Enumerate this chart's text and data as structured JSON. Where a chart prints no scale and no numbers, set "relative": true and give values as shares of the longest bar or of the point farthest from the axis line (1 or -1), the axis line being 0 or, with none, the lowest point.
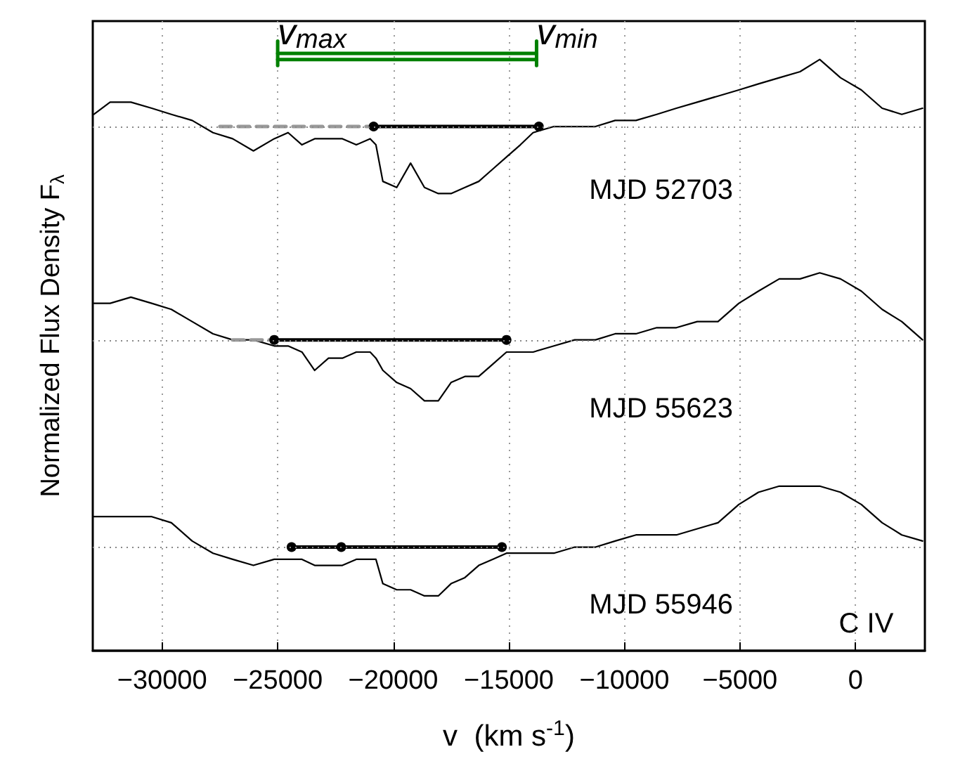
{
  "chart_data": {
    "type": "line",
    "relative": true,
    "xlabel": "v  (km s$^{-1}$)",
    "ylabel": "Normalized Flux Density F$_{λ}$",
    "xlim": [
      -33000,
      3000
    ],
    "xticks": [
      -30000,
      -25000,
      -20000,
      -15000,
      -10000,
      -5000,
      0
    ],
    "grid": "x",
    "marker": "none",
    "line_style": "solid",
    "x": [
      -32950,
      -32250,
      -31350,
      -30450,
      -29600,
      -28700,
      -27800,
      -26950,
      -26050,
      -25150,
      -24550,
      -23950,
      -23400,
      -22800,
      -22200,
      -21600,
      -21000,
      -20750,
      -20450,
      -19850,
      -19250,
      -18650,
      -18050,
      -17500,
      -16900,
      -16300,
      -15700,
      -15100,
      -14500,
      -13950,
      -13050,
      -12150,
      -11250,
      -10400,
      -9500,
      -8600,
      -7750,
      -6850,
      -5950,
      -5050,
      -4200,
      -3300,
      -2400,
      -1550,
      -650,
      250,
      1150,
      2000,
      2900
    ],
    "series": [
      {
        "color": "#000000",
        "values": [
          0.88,
          0.9,
          0.9,
          0.89,
          0.88,
          0.87,
          0.85,
          0.84,
          0.82,
          0.84,
          0.85,
          0.83,
          0.84,
          0.84,
          0.84,
          0.83,
          0.84,
          0.83,
          0.77,
          0.76,
          0.8,
          0.76,
          0.75,
          0.75,
          0.76,
          0.77,
          0.79,
          0.81,
          0.83,
          0.85,
          0.86,
          0.86,
          0.86,
          0.87,
          0.87,
          0.88,
          0.89,
          0.9,
          0.91,
          0.92,
          0.93,
          0.94,
          0.95,
          0.97,
          0.94,
          0.92,
          0.89,
          0.88,
          0.89
        ]
      },
      {
        "color": "#000000",
        "values": [
          0.57,
          0.57,
          0.58,
          0.57,
          0.56,
          0.54,
          0.52,
          0.51,
          0.51,
          0.5,
          0.5,
          0.49,
          0.46,
          0.48,
          0.48,
          0.49,
          0.49,
          0.48,
          0.46,
          0.44,
          0.43,
          0.41,
          0.41,
          0.44,
          0.45,
          0.45,
          0.47,
          0.49,
          0.49,
          0.49,
          0.5,
          0.51,
          0.51,
          0.52,
          0.52,
          0.53,
          0.53,
          0.54,
          0.54,
          0.57,
          0.59,
          0.61,
          0.61,
          0.62,
          0.61,
          0.59,
          0.56,
          0.54,
          0.51
        ]
      },
      {
        "color": "#000000",
        "values": [
          0.22,
          0.22,
          0.22,
          0.22,
          0.21,
          0.18,
          0.16,
          0.15,
          0.14,
          0.15,
          0.15,
          0.15,
          0.14,
          0.14,
          0.14,
          0.15,
          0.15,
          0.15,
          0.11,
          0.1,
          0.1,
          0.09,
          0.09,
          0.11,
          0.12,
          0.14,
          0.15,
          0.16,
          0.16,
          0.16,
          0.16,
          0.17,
          0.17,
          0.18,
          0.19,
          0.19,
          0.19,
          0.2,
          0.21,
          0.24,
          0.26,
          0.27,
          0.27,
          0.27,
          0.26,
          0.24,
          0.21,
          0.19,
          0.18
        ]
      },
      {
        "color": "#999999",
        "line_style": "dashed",
        "x": [
          -27500,
          -20850
        ],
        "values": [
          0.86,
          0.86
        ]
      },
      {
        "color": "#999999",
        "line_style": "dashed",
        "x": [
          -26950,
          -25150
        ],
        "values": [
          0.51,
          0.51
        ]
      },
      {
        "color": "#000000",
        "marker": "circle",
        "x": [
          -20850,
          -13700
        ],
        "values": [
          0.86,
          0.86
        ]
      },
      {
        "color": "#000000",
        "marker": "circle",
        "x": [
          -25150,
          -15100
        ],
        "values": [
          0.51,
          0.51
        ]
      },
      {
        "color": "#000000",
        "marker": "circle",
        "x": [
          -24400,
          -22250,
          -15300
        ],
        "values": [
          0.17,
          0.17,
          0.17
        ]
      },
      {
        "color": "#008000",
        "x": [
          -25000,
          -13800
        ],
        "values": [
          0.98,
          0.98
        ]
      },
      {
        "color": "#008000",
        "x": [
          -25000,
          -13800
        ],
        "values": [
          0.97,
          0.97
        ]
      },
      {
        "color": "#008000",
        "x": [
          -25000,
          -25000
        ],
        "values": [
          0.96,
          1
        ]
      },
      {
        "color": "#008000",
        "x": [
          -13800,
          -13800
        ],
        "values": [
          0.96,
          1
        ]
      }
    ],
    "ref_lines": [
      {
        "axis": "y",
        "value": 0.86,
        "color": "#888888",
        "line_style": "dotted"
      },
      {
        "axis": "y",
        "value": 0.51,
        "color": "#888888",
        "line_style": "dotted"
      },
      {
        "axis": "y",
        "value": 0.17,
        "color": "#888888",
        "line_style": "dotted"
      }
    ],
    "annotations": [
      {
        "text": "v$_{max}$",
        "x": -25000,
        "y": 0.98
      },
      {
        "text": "v$_{min}$",
        "x": -13800,
        "y": 0.98
      },
      "MJD 52703",
      "MJD 55623",
      "MJD 55946",
      "C IV"
    ]
  }
}
